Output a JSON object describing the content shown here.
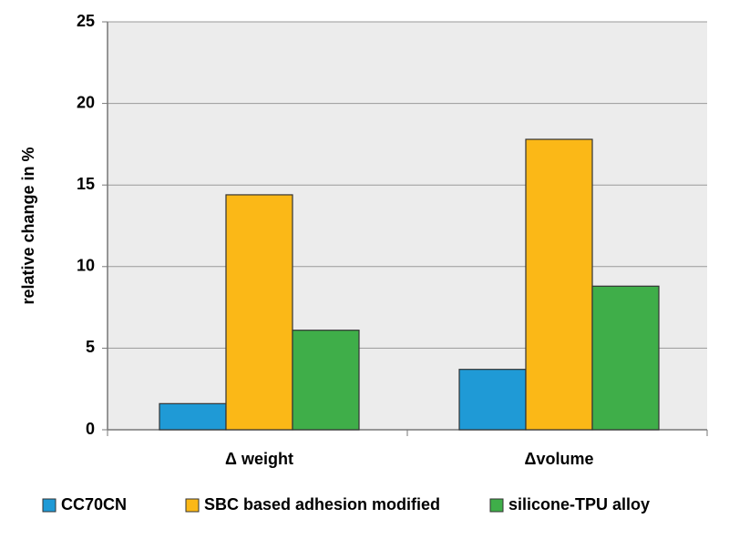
{
  "chart_data": {
    "type": "bar",
    "y_label": "relative change in %",
    "categories": [
      "Δ weight",
      "Δvolume"
    ],
    "series": [
      {
        "name": "CC70CN",
        "color": "#1f9ad6",
        "values": [
          1.6,
          3.7
        ]
      },
      {
        "name": "SBC based adhesion modified",
        "color": "#fbb817",
        "values": [
          14.4,
          17.8
        ]
      },
      {
        "name": "silicone-TPU alloy",
        "color": "#3fae49",
        "values": [
          6.1,
          8.8
        ]
      }
    ],
    "ylim": [
      0,
      25
    ],
    "yticks": [
      0,
      5,
      10,
      15,
      20,
      25
    ],
    "grid": true,
    "legend": "bottom"
  }
}
